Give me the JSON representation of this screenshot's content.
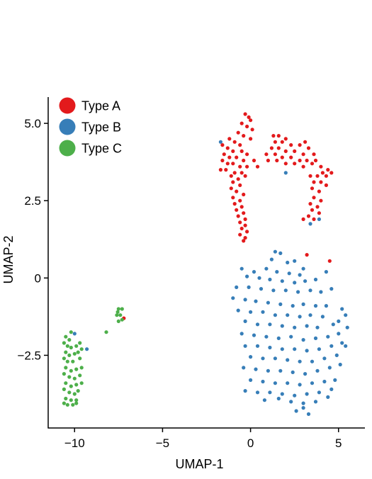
{
  "chart_data": {
    "type": "scatter",
    "title": "",
    "xlabel": "UMAP-1",
    "ylabel": "UMAP-2",
    "xlim": [
      -11.5,
      6.5
    ],
    "ylim": [
      -4.85,
      5.85
    ],
    "xticks": [
      -10,
      -5,
      0,
      5
    ],
    "yticks": [
      -2.5,
      0,
      2.5,
      5.0
    ],
    "xtick_labels": [
      "−10",
      "−5",
      "0",
      "5"
    ],
    "ytick_labels": [
      "−2.5",
      "0",
      "2.5",
      "5.0"
    ],
    "grid": false,
    "legend_position": "top-left",
    "series": [
      {
        "name": "Type A",
        "color": "#e31a1c",
        "points": [
          [
            -0.3,
            5.3
          ],
          [
            -0.1,
            5.2
          ],
          [
            0.0,
            5.1
          ],
          [
            -0.5,
            5.0
          ],
          [
            -0.2,
            4.9
          ],
          [
            0.1,
            4.8
          ],
          [
            -0.7,
            4.7
          ],
          [
            -0.4,
            4.6
          ],
          [
            0.0,
            4.5
          ],
          [
            -1.2,
            4.5
          ],
          [
            -0.9,
            4.4
          ],
          [
            -0.6,
            4.3
          ],
          [
            -1.6,
            4.3
          ],
          [
            -1.3,
            4.2
          ],
          [
            -1.0,
            4.1
          ],
          [
            -0.5,
            4.1
          ],
          [
            -0.2,
            4.0
          ],
          [
            -1.5,
            4.0
          ],
          [
            -1.2,
            3.9
          ],
          [
            -0.8,
            3.9
          ],
          [
            -0.4,
            3.8
          ],
          [
            -1.6,
            3.8
          ],
          [
            -1.3,
            3.7
          ],
          [
            -1.0,
            3.7
          ],
          [
            -0.6,
            3.6
          ],
          [
            -1.7,
            3.5
          ],
          [
            -1.4,
            3.5
          ],
          [
            -0.9,
            3.4
          ],
          [
            -0.5,
            3.4
          ],
          [
            -1.1,
            3.3
          ],
          [
            -0.7,
            3.2
          ],
          [
            -1.0,
            3.1
          ],
          [
            -0.6,
            3.0
          ],
          [
            -1.1,
            2.9
          ],
          [
            -0.8,
            2.8
          ],
          [
            -0.4,
            2.7
          ],
          [
            -1.0,
            2.6
          ],
          [
            -0.6,
            2.5
          ],
          [
            -0.9,
            2.4
          ],
          [
            -0.5,
            2.3
          ],
          [
            -0.8,
            2.2
          ],
          [
            -0.4,
            2.1
          ],
          [
            -0.7,
            2.0
          ],
          [
            -0.3,
            1.9
          ],
          [
            -0.6,
            1.8
          ],
          [
            -0.3,
            1.7
          ],
          [
            -0.5,
            1.6
          ],
          [
            -0.2,
            1.5
          ],
          [
            -0.6,
            1.4
          ],
          [
            -0.3,
            1.3
          ],
          [
            -0.4,
            1.2
          ],
          [
            -0.2,
            3.6
          ],
          [
            -0.3,
            3.3
          ],
          [
            0.4,
            3.6
          ],
          [
            0.2,
            3.8
          ],
          [
            1.3,
            4.6
          ],
          [
            1.6,
            4.6
          ],
          [
            2.0,
            4.5
          ],
          [
            1.4,
            4.4
          ],
          [
            1.8,
            4.4
          ],
          [
            2.3,
            4.3
          ],
          [
            2.8,
            4.3
          ],
          [
            3.1,
            4.4
          ],
          [
            3.3,
            4.2
          ],
          [
            1.2,
            4.2
          ],
          [
            1.6,
            4.2
          ],
          [
            2.0,
            4.1
          ],
          [
            2.5,
            4.1
          ],
          [
            3.0,
            4.0
          ],
          [
            3.6,
            4.0
          ],
          [
            0.9,
            4.0
          ],
          [
            1.4,
            4.0
          ],
          [
            1.8,
            3.9
          ],
          [
            2.3,
            3.9
          ],
          [
            2.8,
            3.8
          ],
          [
            3.2,
            3.8
          ],
          [
            3.7,
            3.8
          ],
          [
            1.0,
            3.8
          ],
          [
            1.5,
            3.8
          ],
          [
            2.0,
            3.7
          ],
          [
            2.5,
            3.7
          ],
          [
            3.0,
            3.6
          ],
          [
            3.5,
            3.7
          ],
          [
            4.0,
            3.6
          ],
          [
            4.4,
            3.5
          ],
          [
            4.1,
            3.4
          ],
          [
            3.8,
            3.3
          ],
          [
            3.4,
            3.3
          ],
          [
            4.6,
            3.4
          ],
          [
            4.3,
            3.3
          ],
          [
            3.6,
            3.1
          ],
          [
            4.0,
            3.1
          ],
          [
            4.3,
            3.0
          ],
          [
            3.5,
            2.9
          ],
          [
            3.9,
            2.8
          ],
          [
            3.6,
            2.6
          ],
          [
            4.0,
            2.5
          ],
          [
            3.4,
            2.4
          ],
          [
            3.8,
            2.3
          ],
          [
            3.5,
            2.2
          ],
          [
            3.9,
            2.1
          ],
          [
            3.3,
            2.0
          ],
          [
            3.6,
            1.9
          ],
          [
            3.0,
            1.9
          ],
          [
            3.2,
            0.75
          ],
          [
            4.5,
            0.55
          ],
          [
            -7.2,
            -1.3
          ]
        ]
      },
      {
        "name": "Type B",
        "color": "#377eb8",
        "points": [
          [
            -1.7,
            4.4
          ],
          [
            2.0,
            3.4
          ],
          [
            3.4,
            1.75
          ],
          [
            3.9,
            1.9
          ],
          [
            -10.0,
            -1.8
          ],
          [
            -9.3,
            -2.3
          ],
          [
            1.4,
            0.85
          ],
          [
            1.7,
            0.8
          ],
          [
            1.2,
            0.6
          ],
          [
            2.1,
            0.5
          ],
          [
            2.5,
            0.55
          ],
          [
            3.0,
            0.3
          ],
          [
            -0.5,
            0.3
          ],
          [
            0.2,
            0.2
          ],
          [
            0.9,
            0.3
          ],
          [
            1.5,
            0.2
          ],
          [
            2.2,
            0.15
          ],
          [
            2.8,
            0.1
          ],
          [
            4.3,
            0.2
          ],
          [
            -0.2,
            0.05
          ],
          [
            0.5,
            0.0
          ],
          [
            1.1,
            -0.05
          ],
          [
            1.8,
            -0.1
          ],
          [
            2.5,
            -0.15
          ],
          [
            3.1,
            -0.1
          ],
          [
            3.7,
            -0.05
          ],
          [
            -0.8,
            -0.3
          ],
          [
            -0.1,
            -0.3
          ],
          [
            0.6,
            -0.35
          ],
          [
            1.3,
            -0.4
          ],
          [
            2.0,
            -0.4
          ],
          [
            2.7,
            -0.45
          ],
          [
            3.4,
            -0.4
          ],
          [
            4.0,
            -0.45
          ],
          [
            4.6,
            -0.35
          ],
          [
            -1.0,
            -0.65
          ],
          [
            -0.3,
            -0.7
          ],
          [
            0.3,
            -0.75
          ],
          [
            1.0,
            -0.8
          ],
          [
            1.7,
            -0.85
          ],
          [
            2.4,
            -0.9
          ],
          [
            3.0,
            -0.85
          ],
          [
            3.7,
            -0.9
          ],
          [
            4.3,
            -0.9
          ],
          [
            -0.7,
            -1.05
          ],
          [
            0.0,
            -1.1
          ],
          [
            0.7,
            -1.1
          ],
          [
            1.4,
            -1.2
          ],
          [
            2.1,
            -1.2
          ],
          [
            2.8,
            -1.25
          ],
          [
            3.4,
            -1.2
          ],
          [
            4.1,
            -1.25
          ],
          [
            5.2,
            -1.0
          ],
          [
            5.4,
            -1.2
          ],
          [
            -0.3,
            -1.4
          ],
          [
            0.4,
            -1.5
          ],
          [
            1.1,
            -1.5
          ],
          [
            1.8,
            -1.55
          ],
          [
            2.5,
            -1.6
          ],
          [
            3.2,
            -1.55
          ],
          [
            3.8,
            -1.6
          ],
          [
            4.7,
            -1.5
          ],
          [
            5.0,
            -1.4
          ],
          [
            -0.5,
            -1.8
          ],
          [
            0.2,
            -1.85
          ],
          [
            0.9,
            -1.9
          ],
          [
            1.6,
            -1.95
          ],
          [
            2.3,
            -1.9
          ],
          [
            3.0,
            -2.0
          ],
          [
            3.7,
            -1.95
          ],
          [
            4.4,
            -1.9
          ],
          [
            5.0,
            -1.8
          ],
          [
            5.5,
            -1.6
          ],
          [
            -0.3,
            -2.2
          ],
          [
            0.4,
            -2.2
          ],
          [
            1.1,
            -2.25
          ],
          [
            1.8,
            -2.3
          ],
          [
            2.5,
            -2.3
          ],
          [
            3.2,
            -2.35
          ],
          [
            3.9,
            -2.3
          ],
          [
            4.6,
            -2.2
          ],
          [
            5.2,
            -2.1
          ],
          [
            0.0,
            -2.55
          ],
          [
            0.7,
            -2.6
          ],
          [
            1.4,
            -2.6
          ],
          [
            2.1,
            -2.65
          ],
          [
            2.8,
            -2.7
          ],
          [
            3.5,
            -2.7
          ],
          [
            4.2,
            -2.6
          ],
          [
            4.9,
            -2.5
          ],
          [
            5.4,
            -2.2
          ],
          [
            -0.4,
            -2.9
          ],
          [
            0.3,
            -2.95
          ],
          [
            1.0,
            -3.0
          ],
          [
            1.7,
            -3.0
          ],
          [
            2.4,
            -3.05
          ],
          [
            3.1,
            -3.1
          ],
          [
            3.8,
            -3.0
          ],
          [
            4.5,
            -2.9
          ],
          [
            5.1,
            -2.8
          ],
          [
            0.0,
            -3.3
          ],
          [
            0.7,
            -3.35
          ],
          [
            1.4,
            -3.4
          ],
          [
            2.1,
            -3.4
          ],
          [
            2.8,
            -3.45
          ],
          [
            3.5,
            -3.4
          ],
          [
            4.2,
            -3.35
          ],
          [
            4.8,
            -3.3
          ],
          [
            -0.3,
            -3.65
          ],
          [
            0.4,
            -3.7
          ],
          [
            1.1,
            -3.7
          ],
          [
            1.8,
            -3.75
          ],
          [
            2.5,
            -3.8
          ],
          [
            3.2,
            -3.75
          ],
          [
            3.9,
            -3.7
          ],
          [
            4.6,
            -3.6
          ],
          [
            0.8,
            -3.95
          ],
          [
            1.6,
            -3.9
          ],
          [
            2.3,
            -4.0
          ],
          [
            3.0,
            -4.05
          ],
          [
            3.7,
            -4.0
          ],
          [
            4.4,
            -3.85
          ],
          [
            2.6,
            -4.3
          ],
          [
            3.3,
            -4.4
          ],
          [
            3.0,
            -4.2
          ]
        ]
      },
      {
        "name": "Type C",
        "color": "#4daf4a",
        "points": [
          [
            -7.5,
            -1.0
          ],
          [
            -7.3,
            -1.0
          ],
          [
            -7.6,
            -1.2
          ],
          [
            -7.4,
            -1.2
          ],
          [
            -7.5,
            -1.4
          ],
          [
            -7.3,
            -1.35
          ],
          [
            -7.55,
            -1.1
          ],
          [
            -8.2,
            -1.75
          ],
          [
            -10.2,
            -1.75
          ],
          [
            -10.5,
            -1.9
          ],
          [
            -10.3,
            -2.0
          ],
          [
            -10.6,
            -2.1
          ],
          [
            -10.4,
            -2.2
          ],
          [
            -10.2,
            -2.25
          ],
          [
            -9.7,
            -2.1
          ],
          [
            -9.9,
            -2.2
          ],
          [
            -10.5,
            -2.4
          ],
          [
            -10.3,
            -2.5
          ],
          [
            -10.0,
            -2.45
          ],
          [
            -9.8,
            -2.4
          ],
          [
            -9.6,
            -2.3
          ],
          [
            -10.6,
            -2.6
          ],
          [
            -10.4,
            -2.7
          ],
          [
            -10.1,
            -2.7
          ],
          [
            -9.7,
            -2.6
          ],
          [
            -10.5,
            -2.9
          ],
          [
            -10.2,
            -3.0
          ],
          [
            -9.9,
            -2.95
          ],
          [
            -9.6,
            -2.9
          ],
          [
            -10.6,
            -3.1
          ],
          [
            -10.3,
            -3.2
          ],
          [
            -10.0,
            -3.25
          ],
          [
            -9.7,
            -3.15
          ],
          [
            -10.5,
            -3.4
          ],
          [
            -10.2,
            -3.5
          ],
          [
            -9.9,
            -3.45
          ],
          [
            -9.6,
            -3.4
          ],
          [
            -10.6,
            -3.6
          ],
          [
            -10.3,
            -3.7
          ],
          [
            -10.0,
            -3.75
          ],
          [
            -9.8,
            -3.65
          ],
          [
            -10.5,
            -3.9
          ],
          [
            -10.2,
            -3.95
          ],
          [
            -9.9,
            -3.95
          ],
          [
            -10.6,
            -4.05
          ],
          [
            -10.4,
            -4.1
          ],
          [
            -10.1,
            -4.1
          ],
          [
            -9.9,
            -4.05
          ]
        ]
      }
    ]
  }
}
